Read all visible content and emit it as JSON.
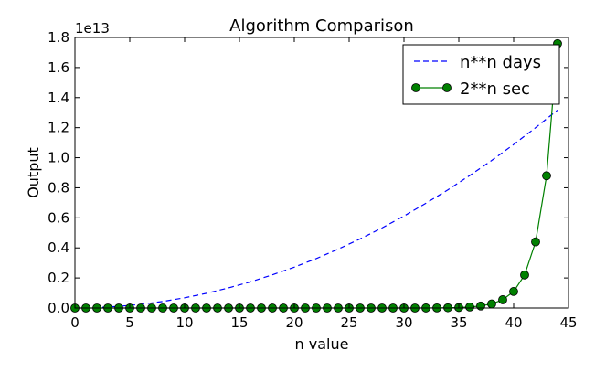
{
  "chart_data": {
    "type": "line",
    "title": "Algorithm Comparison",
    "xlabel": "n value",
    "ylabel": "Output",
    "y_offset_label": "1e13",
    "xlim": [
      0,
      45
    ],
    "ylim": [
      0,
      1.8
    ],
    "y_scale": 10000000000000.0,
    "x_ticks": [
      "0",
      "5",
      "10",
      "15",
      "20",
      "25",
      "30",
      "35",
      "40",
      "45"
    ],
    "y_ticks": [
      "0.0",
      "0.2",
      "0.4",
      "0.6",
      "0.8",
      "1.0",
      "1.2",
      "1.4",
      "1.6",
      "1.8"
    ],
    "grid": false,
    "legend_position": "top-right",
    "series": [
      {
        "name": "n**n days",
        "style": "dashed",
        "color": "#0000ff",
        "x": [
          0,
          2,
          4,
          6,
          8,
          10,
          12,
          14,
          16,
          18,
          20,
          22,
          24,
          26,
          28,
          30,
          32,
          34,
          36,
          38,
          40,
          42,
          44
        ],
        "y": [
          0.0,
          0.0027,
          0.011,
          0.0245,
          0.0436,
          0.068,
          0.098,
          0.134,
          0.174,
          0.221,
          0.272,
          0.329,
          0.392,
          0.46,
          0.533,
          0.612,
          0.697,
          0.786,
          0.882,
          0.982,
          1.088,
          1.2,
          1.317
        ]
      },
      {
        "name": "2**n sec",
        "style": "solid-marker",
        "color": "#008000",
        "x": [
          0,
          1,
          2,
          3,
          4,
          5,
          6,
          7,
          8,
          9,
          10,
          11,
          12,
          13,
          14,
          15,
          16,
          17,
          18,
          19,
          20,
          21,
          22,
          23,
          24,
          25,
          26,
          27,
          28,
          29,
          30,
          31,
          32,
          33,
          34,
          35,
          36,
          37,
          38,
          39,
          40,
          41,
          42,
          43,
          44
        ],
        "y": [
          0,
          0,
          0,
          0,
          0,
          0,
          0,
          0,
          0,
          0,
          0,
          0,
          0,
          0,
          0,
          0,
          0,
          0,
          0,
          0,
          0,
          0,
          0,
          0,
          0,
          0,
          0,
          0,
          0,
          0,
          0,
          0,
          0.0004,
          0.0009,
          0.0017,
          0.0034,
          0.0069,
          0.0137,
          0.0275,
          0.055,
          0.11,
          0.22,
          0.44,
          0.88,
          1.759
        ]
      }
    ]
  }
}
